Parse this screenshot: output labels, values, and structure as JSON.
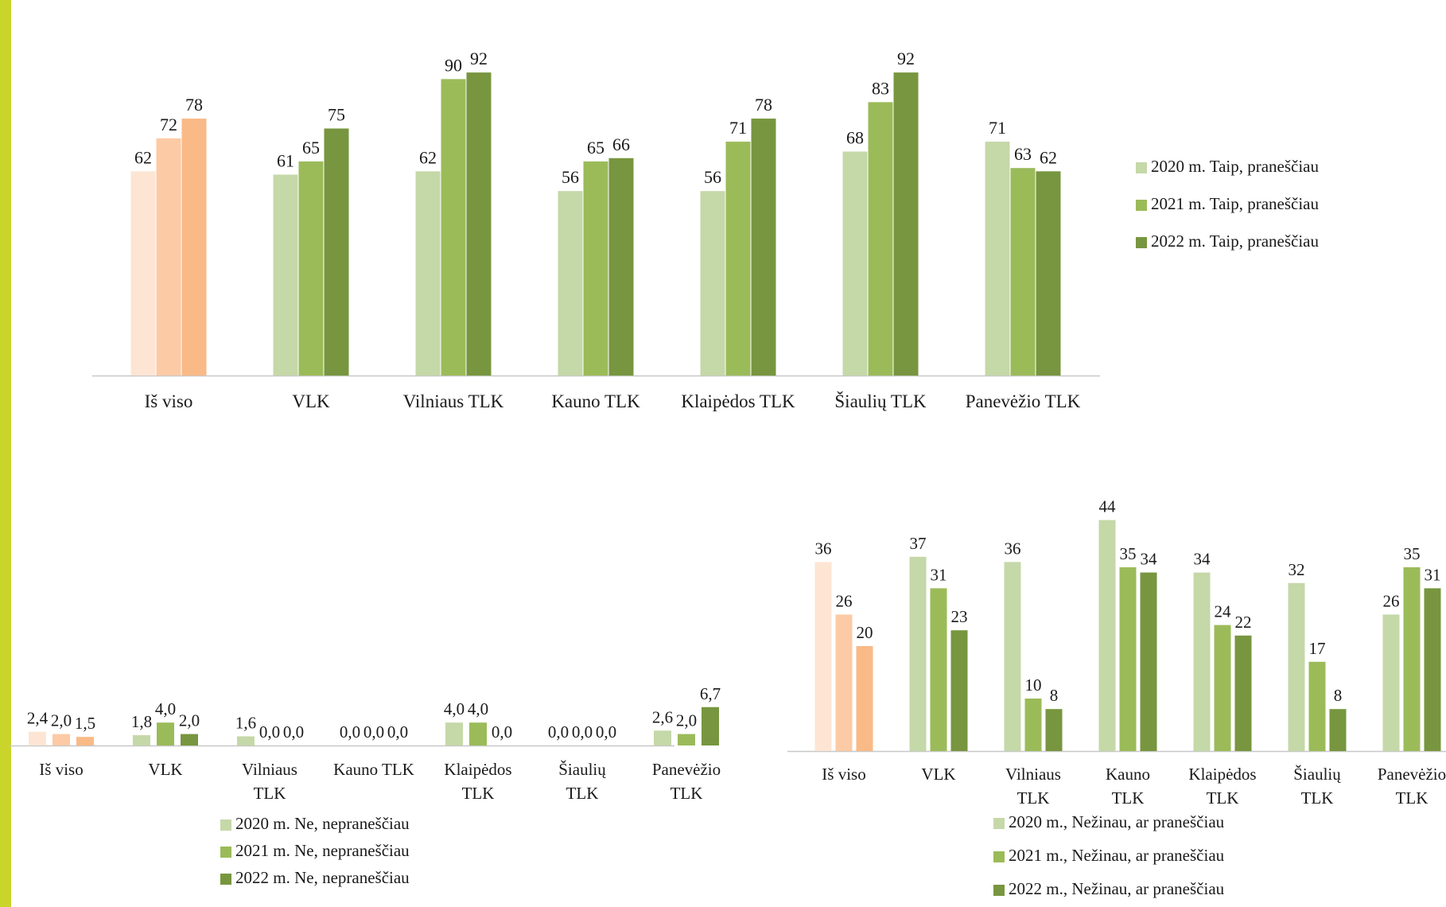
{
  "colors": {
    "side_bar": "#c9d52b",
    "total_series": [
      "#fde5d4",
      "#fccaa5",
      "#f9ba87"
    ],
    "green_series": [
      "#c5d8a8",
      "#9bbb59",
      "#77963f"
    ],
    "axis": "#c8c8c8"
  },
  "chart_data": [
    {
      "type": "bar",
      "categories": [
        [
          "Iš viso"
        ],
        [
          "VLK"
        ],
        [
          "Vilniaus TLK"
        ],
        [
          "Kauno TLK"
        ],
        [
          "Klaipėdos TLK"
        ],
        [
          "Šiaulių TLK"
        ],
        [
          "Panevėžio TLK"
        ]
      ],
      "series": [
        {
          "name": "2020 m. Taip, praneščiau",
          "values": [
            62,
            61,
            62,
            56,
            56,
            68,
            71
          ],
          "labels": [
            "62",
            "61",
            "62",
            "56",
            "56",
            "68",
            "71"
          ]
        },
        {
          "name": "2021 m. Taip, praneščiau",
          "values": [
            72,
            65,
            90,
            65,
            71,
            83,
            63
          ],
          "labels": [
            "72",
            "65",
            "90",
            "65",
            "71",
            "83",
            "63"
          ]
        },
        {
          "name": "2022 m. Taip, praneščiau",
          "values": [
            78,
            75,
            92,
            66,
            78,
            92,
            62
          ],
          "labels": [
            "78",
            "75",
            "92",
            "66",
            "78",
            "92",
            "62"
          ]
        }
      ],
      "ylim": [
        0,
        100
      ],
      "grid": false,
      "legend_position": "right"
    },
    {
      "type": "bar",
      "categories": [
        [
          "Iš viso"
        ],
        [
          "VLK"
        ],
        [
          "Vilniaus",
          "TLK"
        ],
        [
          "Kauno TLK"
        ],
        [
          "Klaipėdos",
          "TLK"
        ],
        [
          "Šiaulių",
          "TLK"
        ],
        [
          "Panevėžio",
          "TLK"
        ]
      ],
      "series": [
        {
          "name": "2020 m. Ne, nepraneščiau",
          "values": [
            2.4,
            1.8,
            1.6,
            0.0,
            4.0,
            0.0,
            2.6
          ],
          "labels": [
            "2,4",
            "1,8",
            "1,6",
            "0,0",
            "4,0",
            "0,0",
            "2,6"
          ]
        },
        {
          "name": "2021 m. Ne, nepraneščiau",
          "values": [
            2.0,
            4.0,
            0.0,
            0.0,
            4.0,
            0.0,
            2.0
          ],
          "labels": [
            "2,0",
            "4,0",
            "0,0",
            "0,0",
            "4,0",
            "0,0",
            "2,0"
          ]
        },
        {
          "name": "2022 m. Ne, nepraneščiau",
          "values": [
            1.5,
            2.0,
            0.0,
            0.0,
            0.0,
            0.0,
            6.7
          ],
          "labels": [
            "1,5",
            "2,0",
            "0,0",
            "0,0",
            "0,0",
            "0,0",
            "6,7"
          ]
        }
      ],
      "grid": false,
      "legend_position": "bottom"
    },
    {
      "type": "bar",
      "categories": [
        [
          "Iš viso"
        ],
        [
          "VLK"
        ],
        [
          "Vilniaus",
          "TLK"
        ],
        [
          "Kauno",
          "TLK"
        ],
        [
          "Klaipėdos",
          "TLK"
        ],
        [
          "Šiaulių",
          "TLK"
        ],
        [
          "Panevėžio",
          "TLK"
        ]
      ],
      "series": [
        {
          "name": "2020 m., Nežinau, ar praneščiau",
          "values": [
            36,
            37,
            36,
            44,
            34,
            32,
            26
          ],
          "labels": [
            "36",
            "37",
            "36",
            "44",
            "34",
            "32",
            "26"
          ]
        },
        {
          "name": "2021 m., Nežinau, ar praneščiau",
          "values": [
            26,
            31,
            10,
            35,
            24,
            17,
            35
          ],
          "labels": [
            "26",
            "31",
            "10",
            "35",
            "24",
            "17",
            "35"
          ]
        },
        {
          "name": "2022 m., Nežinau, ar praneščiau",
          "values": [
            20,
            23,
            8,
            34,
            22,
            8,
            31
          ],
          "labels": [
            "20",
            "23",
            "8",
            "34",
            "22",
            "8",
            "31"
          ]
        }
      ],
      "grid": false,
      "legend_position": "bottom"
    }
  ]
}
